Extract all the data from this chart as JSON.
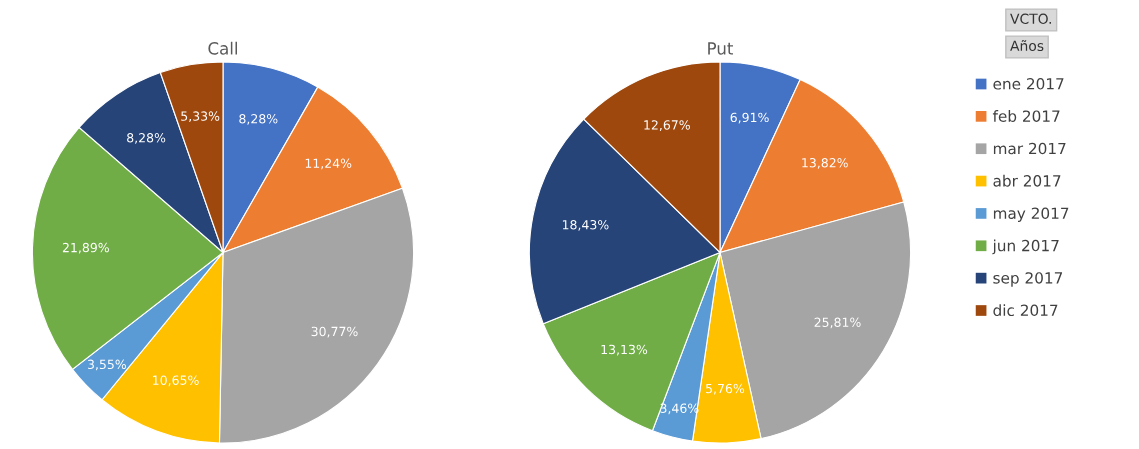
{
  "chart_data": [
    {
      "type": "pie",
      "title": "Call",
      "categories": [
        "ene 2017",
        "feb 2017",
        "mar 2017",
        "abr 2017",
        "may 2017",
        "jun 2017",
        "sep 2017",
        "dic 2017"
      ],
      "values": [
        8.28,
        11.24,
        30.77,
        10.65,
        3.55,
        21.89,
        8.28,
        5.33
      ],
      "colors": [
        "#4472c4",
        "#ed7d31",
        "#a5a5a5",
        "#ffc000",
        "#5b9bd5",
        "#70ad47",
        "#264478",
        "#9e480e"
      ],
      "value_labels": [
        "8,28%",
        "11,24%",
        "30,77%",
        "10,65%",
        "3,55%",
        "21,89%",
        "8,28%",
        "5,33%"
      ],
      "legend": "right"
    },
    {
      "type": "pie",
      "title": "Put",
      "categories": [
        null,
        null,
        null,
        null,
        null,
        null,
        null,
        null
      ],
      "values": [
        6.91,
        13.82,
        25.81,
        5.76,
        3.46,
        13.13,
        18.43,
        12.67
      ],
      "colors": [
        "#4472c4",
        "#ed7d31",
        "#a5a5a5",
        "#ffc000",
        "#5b9bd5",
        "#70ad47",
        "#264478",
        "#9e480e"
      ],
      "value_labels": [
        "6,91%",
        "13,82%",
        "25,81%",
        "5,76%",
        "3,46%",
        "13,13%",
        "18,43%",
        "12,67%"
      ],
      "annotations": [
        "VCTO.",
        "Años"
      ]
    }
  ]
}
